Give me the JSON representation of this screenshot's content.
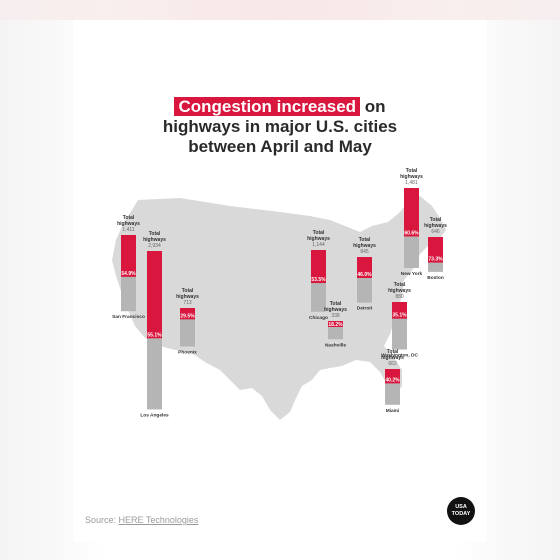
{
  "title": {
    "highlight": "Congestion increased",
    "rest_line1": " on",
    "line2": "highways in major U.S. cities",
    "line3": "between April and May"
  },
  "source": {
    "label": "Source: ",
    "link": "HERE Technologies"
  },
  "logo": {
    "line1": "USA",
    "line2": "TODAY"
  },
  "chart_data": {
    "type": "bar",
    "title": "Congestion increased on highways in major U.S. cities between April and May",
    "series_label": "Total highways",
    "colors": {
      "increase": "#d9163d",
      "base": "#b5b5b5",
      "map": "#d9d9d9"
    },
    "cities": [
      {
        "city": "San Francisco",
        "total_highways": "1,411",
        "increase": "54.9%"
      },
      {
        "city": "Los Angeles",
        "total_highways": "2,934",
        "increase": "55.1%"
      },
      {
        "city": "Phoenix",
        "total_highways": "713",
        "increase": "29.5%"
      },
      {
        "city": "Chicago",
        "total_highways": "1,144",
        "increase": "53.5%"
      },
      {
        "city": "Detroit",
        "total_highways": "845",
        "increase": "46.0%"
      },
      {
        "city": "Nashville",
        "total_highways": "338",
        "increase": "18.2%"
      },
      {
        "city": "Washington, DC",
        "total_highways": "880",
        "increase": "35.1%"
      },
      {
        "city": "Miami",
        "total_highways": "663",
        "increase": "40.2%"
      },
      {
        "city": "New York",
        "total_highways": "1,481",
        "increase": "60.6%"
      },
      {
        "city": "Boston",
        "total_highways": "646",
        "increase": "73.3%"
      }
    ]
  }
}
